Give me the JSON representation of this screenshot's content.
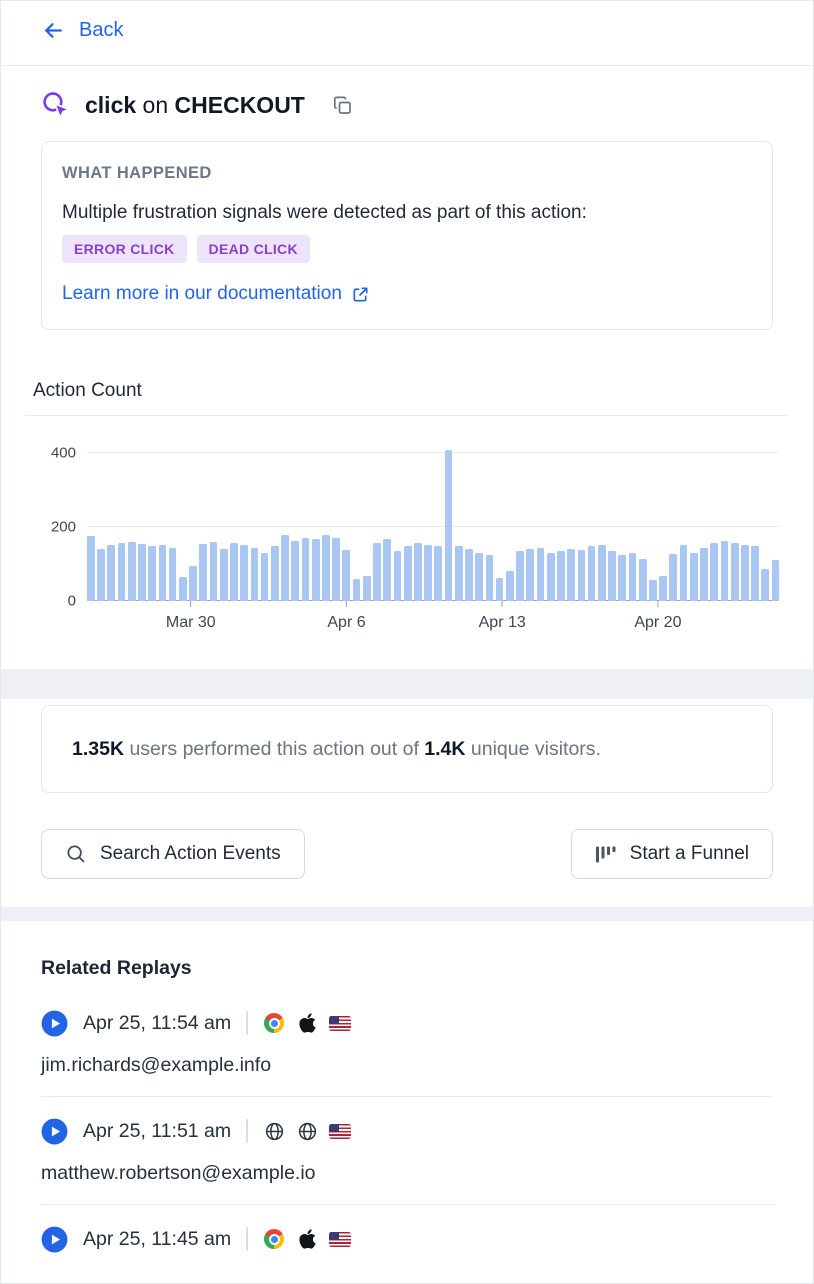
{
  "header": {
    "back_label": "Back",
    "action_type": "click",
    "action_connector": "on",
    "action_target": "CHECKOUT"
  },
  "what_happened": {
    "title": "WHAT HAPPENED",
    "description": "Multiple frustration signals were detected as part of this action:",
    "badges": [
      "ERROR CLICK",
      "DEAD CLICK"
    ],
    "link_label": "Learn more in our documentation"
  },
  "chart_data": {
    "type": "bar",
    "title": "Action Count",
    "xlabel": "",
    "ylabel": "",
    "ylim": [
      0,
      420
    ],
    "y_ticks": [
      0,
      200,
      400
    ],
    "grid": true,
    "bar_color": "#a9c7f2",
    "x_ticks": [
      {
        "label": "Mar 30",
        "pos_pct": 15
      },
      {
        "label": "Apr 6",
        "pos_pct": 37.5
      },
      {
        "label": "Apr 13",
        "pos_pct": 60
      },
      {
        "label": "Apr 20",
        "pos_pct": 82.5
      }
    ],
    "values": [
      175,
      140,
      152,
      158,
      160,
      155,
      148,
      152,
      143,
      65,
      95,
      155,
      160,
      140,
      158,
      152,
      145,
      130,
      148,
      178,
      163,
      172,
      168,
      178,
      172,
      138,
      60,
      68,
      158,
      168,
      135,
      148,
      158,
      152,
      148,
      410,
      150,
      140,
      130,
      125,
      62,
      80,
      135,
      140,
      143,
      130,
      135,
      140,
      138,
      148,
      152,
      135,
      125,
      130,
      113,
      58,
      68,
      128,
      152,
      130,
      143,
      158,
      163,
      158,
      152,
      148,
      88,
      112
    ]
  },
  "summary": {
    "users_count": "1.35K",
    "middle_text": " users performed this action out of ",
    "visitors_count": "1.4K",
    "end_text": " unique visitors."
  },
  "buttons": {
    "search_label": "Search Action Events",
    "funnel_label": "Start a Funnel"
  },
  "related_replays": {
    "title": "Related Replays",
    "items": [
      {
        "timestamp": "Apr 25, 11:54 am",
        "icons": [
          "chrome",
          "apple",
          "flag-us"
        ],
        "email": "jim.richards@example.info"
      },
      {
        "timestamp": "Apr 25, 11:51 am",
        "icons": [
          "globe",
          "globe",
          "flag-us"
        ],
        "email": "matthew.robertson@example.io"
      },
      {
        "timestamp": "Apr 25, 11:45 am",
        "icons": [
          "chrome",
          "apple",
          "flag-us"
        ],
        "email": ""
      }
    ]
  },
  "colors": {
    "accent_blue": "#2264e5",
    "accent_purple": "#7c3aed",
    "badge_bg": "#ede4f9",
    "badge_text": "#8a3fc9",
    "bar_fill": "#a9c7f2"
  }
}
